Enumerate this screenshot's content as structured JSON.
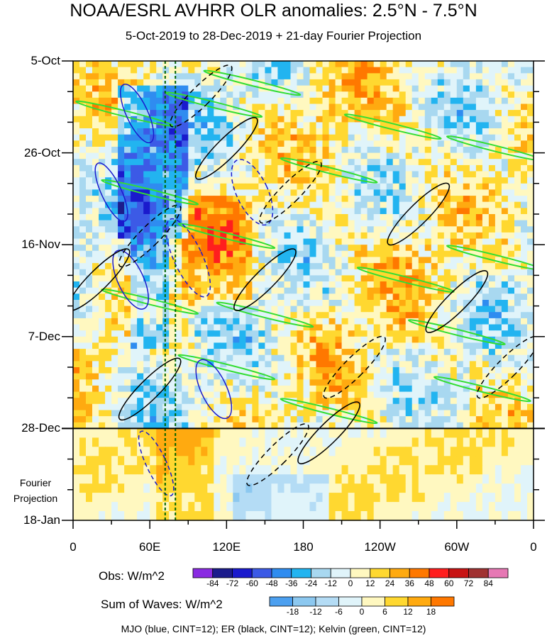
{
  "chart_data": {
    "type": "heatmap",
    "title": "NOAA/ESRL AVHRR OLR anomalies: 2.5°N - 7.5°N",
    "subtitle": "5-Oct-2019 to 28-Dec-2019 + 21-day Fourier Projection",
    "x_tick_labels": [
      "0",
      "60E",
      "120E",
      "180",
      "120W",
      "60W",
      "0"
    ],
    "x_range_deg_east": [
      0,
      360
    ],
    "y_tick_labels": [
      "5-Oct",
      "26-Oct",
      "16-Nov",
      "7-Dec",
      "28-Dec",
      "18-Jan"
    ],
    "y_range_days": [
      0,
      105
    ],
    "observation_end_day": 84,
    "projection_label": "Fourier Projection",
    "obs_colorbar": {
      "title": "Obs: W/m^2",
      "levels": [
        "-84",
        "-72",
        "-60",
        "-48",
        "-36",
        "-24",
        "-12",
        "0",
        "12",
        "24",
        "36",
        "48",
        "60",
        "72",
        "84"
      ],
      "colors": [
        "#8a2be2",
        "#1c1c8c",
        "#1a1acd",
        "#3c5ae6",
        "#2f8cf0",
        "#22b4f0",
        "#a8d8f0",
        "#e0f4fa",
        "#fff8c0",
        "#ffd830",
        "#ffaa10",
        "#ff7800",
        "#ff1e1e",
        "#c81414",
        "#a03232",
        "#e678b4"
      ]
    },
    "wave_colorbar": {
      "title": "Sum of Waves: W/m^2",
      "levels": [
        "-18",
        "-12",
        "-6",
        "0",
        "6",
        "12",
        "18"
      ],
      "colors": [
        "#4ca0f0",
        "#8cc8f0",
        "#b4dcf5",
        "#e0f4fa",
        "#fff8c0",
        "#ffd830",
        "#ffaa10",
        "#ff7800"
      ]
    },
    "contours": [
      {
        "name": "MJO",
        "color": "blue",
        "cint": 12
      },
      {
        "name": "ER",
        "color": "black",
        "cint": 12
      },
      {
        "name": "Kelvin",
        "color": "green",
        "cint": 12
      }
    ],
    "reference_lines_deg_east": [
      72,
      80
    ],
    "caption": "MJO (blue, CINT=12); ER (black, CINT=12); Kelvin (green, CINT=12)"
  }
}
